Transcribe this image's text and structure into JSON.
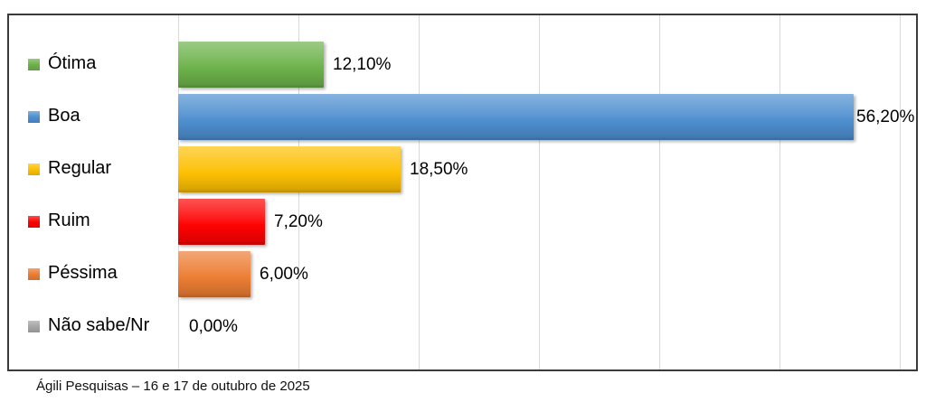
{
  "chart_data": {
    "type": "bar",
    "orientation": "horizontal",
    "title": "",
    "xlabel": "",
    "ylabel": "",
    "categories": [
      "Ótima",
      "Boa",
      "Regular",
      "Ruim",
      "Péssima",
      "Não sabe/Nr"
    ],
    "values": [
      12.1,
      56.2,
      18.5,
      7.2,
      6.0,
      0.0
    ],
    "value_labels": [
      "12,10%",
      "56,20%",
      "18,50%",
      "7,20%",
      "6,00%",
      "0,00%"
    ],
    "series_colors": [
      "#6CB24A",
      "#4E8FD0",
      "#FDC003",
      "#FE0202",
      "#EC7D33",
      "#A6A6A6"
    ],
    "xlim": [
      0,
      61.5
    ],
    "gridline_interval_pct": 10,
    "grid": true,
    "legend_position": "category labels with color swatches at left of plot"
  },
  "caption": "Ágili Pesquisas – 16 e 17 de outubro de 2025",
  "colors": {
    "background": "#FFFFFF",
    "frame_border": "#3B3B3B",
    "gridline": "#D9D9D9",
    "text": "#000000"
  }
}
